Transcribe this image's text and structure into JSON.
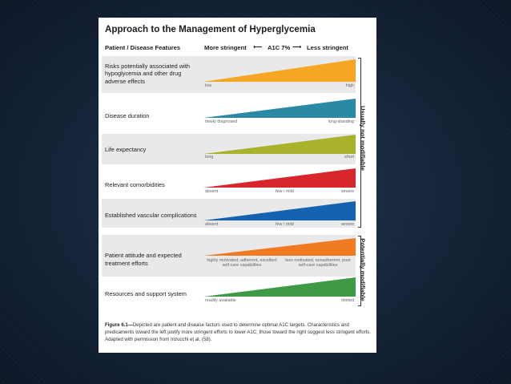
{
  "figure": {
    "title": "Approach to the Management of Hyperglycemia",
    "header_features": "Patient / Disease Features",
    "header_more": "More stringent",
    "header_a1c": "A1C 7%",
    "header_less": "Less stringent",
    "side_not_modifiable": "Usually not modifiable",
    "side_modifiable": "Potentially modifiable",
    "rows": [
      {
        "label": "Risks potentially associated with hypoglycemia and other drug adverse effects",
        "left": "low",
        "mid": "",
        "right": "high",
        "color": "#f5a623"
      },
      {
        "label": "Disease duration",
        "left": "newly diagnosed",
        "mid": "",
        "right": "long-standing",
        "color": "#2a8aa6"
      },
      {
        "label": "Life expectancy",
        "left": "long",
        "mid": "",
        "right": "short",
        "color": "#a8b22a"
      },
      {
        "label": "Relevant comorbidities",
        "left": "absent",
        "mid": "few / mild",
        "right": "severe",
        "color": "#d7262e"
      },
      {
        "label": "Established vascular complications",
        "left": "absent",
        "mid": "few / mild",
        "right": "severe",
        "color": "#1463b0"
      },
      {
        "label": "Patient attitude and expected treatment efforts",
        "left": "highly motivated, adherent, excellent self-care capabilities",
        "mid": "",
        "right": "less motivated, nonadherent, poor self-care capabilities",
        "color": "#f07b22"
      },
      {
        "label": "Resources and support system",
        "left": "readily available",
        "mid": "",
        "right": "limited",
        "color": "#3f9a45"
      }
    ],
    "caption_label": "Figure 6.1—",
    "caption_text": "Depicted are patient and disease factors used to determine optimal A1C targets. Characteristics and predicaments toward the left justify more stringent efforts to lower A1C; those toward the right suggest less stringent efforts. Adapted with permission from Inzucchi et al. (58)."
  }
}
